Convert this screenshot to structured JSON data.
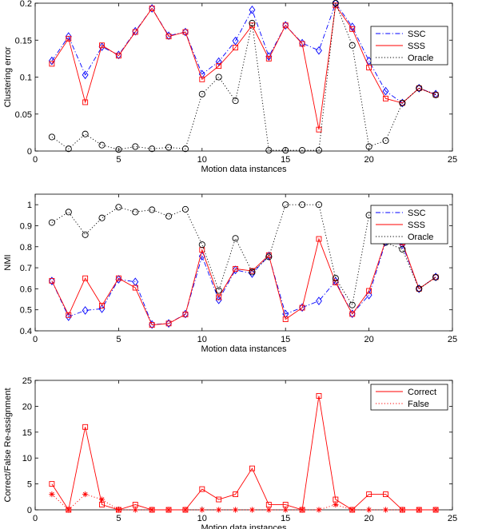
{
  "chart_data": [
    {
      "type": "line",
      "xlabel": "Motion data instances",
      "ylabel": "Clustering error",
      "xlim": [
        0,
        25
      ],
      "ylim": [
        0,
        0.2
      ],
      "xticks": [
        0,
        5,
        10,
        15,
        20,
        25
      ],
      "yticks": [
        0,
        0.05,
        0.1,
        0.15,
        0.2
      ],
      "xtick_labels": [
        "0",
        "5",
        "10",
        "15",
        "20",
        "25"
      ],
      "ytick_labels": [
        "0",
        "0.05",
        "0.1",
        "0.15",
        "0.2"
      ],
      "legend_position": "top-right",
      "x": [
        1,
        2,
        3,
        4,
        5,
        6,
        7,
        8,
        9,
        10,
        11,
        12,
        13,
        14,
        15,
        16,
        17,
        18,
        19,
        20,
        21,
        22,
        23,
        24
      ],
      "series": [
        {
          "name": "SSC",
          "color": "#0000ff",
          "line": "dashdot",
          "marker": "diamond",
          "values": [
            0.122,
            0.155,
            0.103,
            0.141,
            0.13,
            0.162,
            0.193,
            0.156,
            0.161,
            0.104,
            0.121,
            0.149,
            0.191,
            0.128,
            0.17,
            0.146,
            0.136,
            0.2,
            0.168,
            0.122,
            0.081,
            0.065,
            0.085,
            0.077
          ]
        },
        {
          "name": "SSS",
          "color": "#ff0000",
          "line": "solid",
          "marker": "square",
          "values": [
            0.118,
            0.152,
            0.066,
            0.143,
            0.129,
            0.161,
            0.193,
            0.155,
            0.161,
            0.097,
            0.115,
            0.14,
            0.17,
            0.125,
            0.17,
            0.145,
            0.029,
            0.197,
            0.165,
            0.113,
            0.071,
            0.065,
            0.085,
            0.076
          ]
        },
        {
          "name": "Oracle",
          "color": "#000000",
          "line": "dotted",
          "marker": "circle",
          "values": [
            0.019,
            0.003,
            0.023,
            0.008,
            0.002,
            0.006,
            0.003,
            0.005,
            0.003,
            0.077,
            0.1,
            0.068,
            0.173,
            0.001,
            0.001,
            0.001,
            0.001,
            0.2,
            0.143,
            0.006,
            0.014,
            0.065,
            0.085,
            0.076
          ]
        }
      ]
    },
    {
      "type": "line",
      "xlabel": "Motion data instances",
      "ylabel": "NMI",
      "xlim": [
        0,
        25
      ],
      "ylim": [
        0.4,
        1.05
      ],
      "xticks": [
        0,
        5,
        10,
        15,
        20,
        25
      ],
      "yticks": [
        0.4,
        0.5,
        0.6,
        0.7,
        0.8,
        0.9,
        1
      ],
      "xtick_labels": [
        "0",
        "5",
        "10",
        "15",
        "20",
        "25"
      ],
      "ytick_labels": [
        "0.4",
        "0.5",
        "0.6",
        "0.7",
        "0.8",
        "0.9",
        "1"
      ],
      "legend_position": "top-right",
      "x": [
        1,
        2,
        3,
        4,
        5,
        6,
        7,
        8,
        9,
        10,
        11,
        12,
        13,
        14,
        15,
        16,
        17,
        18,
        19,
        20,
        21,
        22,
        23,
        24
      ],
      "series": [
        {
          "name": "SSC",
          "color": "#0000ff",
          "line": "dashdot",
          "marker": "diamond",
          "values": [
            0.637,
            0.467,
            0.497,
            0.505,
            0.645,
            0.633,
            0.43,
            0.435,
            0.48,
            0.755,
            0.547,
            0.69,
            0.672,
            0.757,
            0.48,
            0.511,
            0.542,
            0.636,
            0.481,
            0.57,
            0.824,
            0.81,
            0.6,
            0.656
          ]
        },
        {
          "name": "SSS",
          "color": "#ff0000",
          "line": "solid",
          "marker": "square",
          "values": [
            0.638,
            0.475,
            0.65,
            0.52,
            0.65,
            0.605,
            0.428,
            0.435,
            0.478,
            0.785,
            0.56,
            0.695,
            0.685,
            0.76,
            0.455,
            0.51,
            0.837,
            0.63,
            0.48,
            0.59,
            0.83,
            0.82,
            0.6,
            0.655
          ]
        },
        {
          "name": "Oracle",
          "color": "#000000",
          "line": "dotted",
          "marker": "circle",
          "values": [
            0.915,
            0.965,
            0.857,
            0.937,
            0.988,
            0.965,
            0.976,
            0.945,
            0.978,
            0.81,
            0.592,
            0.84,
            0.68,
            0.752,
            1.0,
            1.0,
            1.0,
            0.65,
            0.523,
            0.95,
            0.82,
            0.788,
            0.6,
            0.655
          ]
        }
      ]
    },
    {
      "type": "line",
      "xlabel": "Motion data instances",
      "ylabel": "Correct/False Re-assignment",
      "xlim": [
        0,
        25
      ],
      "ylim": [
        0,
        25
      ],
      "xticks": [
        0,
        5,
        10,
        15,
        20,
        25
      ],
      "yticks": [
        0,
        5,
        10,
        15,
        20,
        25
      ],
      "xtick_labels": [
        "0",
        "5",
        "10",
        "15",
        "20",
        "25"
      ],
      "ytick_labels": [
        "0",
        "5",
        "10",
        "15",
        "20",
        "25"
      ],
      "legend_position": "top-right",
      "x": [
        1,
        2,
        3,
        4,
        5,
        6,
        7,
        8,
        9,
        10,
        11,
        12,
        13,
        14,
        15,
        16,
        17,
        18,
        19,
        20,
        21,
        22,
        23,
        24
      ],
      "series": [
        {
          "name": "Correct",
          "color": "#ff0000",
          "line": "solid",
          "marker": "square",
          "values": [
            5,
            0,
            16,
            1,
            0,
            1,
            0,
            0,
            0,
            4,
            2,
            3,
            8,
            1,
            1,
            0,
            22,
            2,
            0,
            3,
            3,
            0,
            0,
            0
          ]
        },
        {
          "name": "False",
          "color": "#ff0000",
          "line": "dotted",
          "marker": "star",
          "values": [
            3,
            0,
            3,
            2,
            0,
            0,
            0,
            0,
            0,
            0,
            0,
            0,
            0,
            0,
            0,
            0,
            0,
            1,
            0,
            0,
            0,
            0,
            0,
            0
          ]
        }
      ]
    }
  ]
}
